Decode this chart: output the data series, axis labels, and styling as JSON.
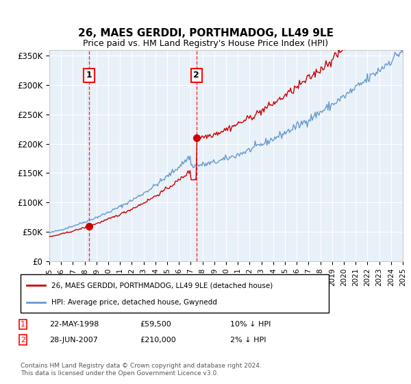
{
  "title": "26, MAES GERDDI, PORTHMADOG, LL49 9LE",
  "subtitle": "Price paid vs. HM Land Registry's House Price Index (HPI)",
  "ylabel": "",
  "background_color": "#ffffff",
  "plot_background": "#e8f0f8",
  "grid_color": "#ffffff",
  "line_color_red": "#cc0000",
  "line_color_blue": "#6699cc",
  "purchase1_date": 1998.38,
  "purchase1_price": 59500,
  "purchase2_date": 2007.48,
  "purchase2_price": 210000,
  "xmin": 1995,
  "xmax": 2025,
  "ymin": 0,
  "ymax": 360000,
  "yticks": [
    0,
    50000,
    100000,
    150000,
    200000,
    250000,
    300000,
    350000
  ],
  "ytick_labels": [
    "£0",
    "£50K",
    "£100K",
    "£150K",
    "£200K",
    "£250K",
    "£300K",
    "£350K"
  ],
  "legend1": "26, MAES GERDDI, PORTHMADOG, LL49 9LE (detached house)",
  "legend2": "HPI: Average price, detached house, Gwynedd",
  "table_row1_num": "1",
  "table_row1_date": "22-MAY-1998",
  "table_row1_price": "£59,500",
  "table_row1_hpi": "10% ↓ HPI",
  "table_row2_num": "2",
  "table_row2_date": "28-JUN-2007",
  "table_row2_price": "£210,000",
  "table_row2_hpi": "2% ↓ HPI",
  "footnote": "Contains HM Land Registry data © Crown copyright and database right 2024.\nThis data is licensed under the Open Government Licence v3.0."
}
